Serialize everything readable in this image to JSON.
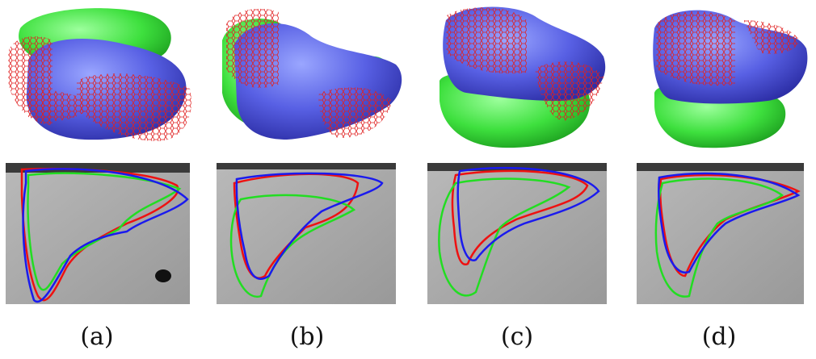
{
  "figure": {
    "panels": [
      {
        "label": "(a)"
      },
      {
        "label": "(b)"
      },
      {
        "label": "(c)"
      },
      {
        "label": "(d)"
      }
    ],
    "colors": {
      "green_surface": "#3ee83e",
      "blue_surface": "#5b63e6",
      "red_mesh": "#e02020",
      "red_contour": "#ee1111",
      "green_contour": "#22dd22",
      "blue_contour": "#1a1aee",
      "ct_gray": "#a8a8a8"
    }
  }
}
